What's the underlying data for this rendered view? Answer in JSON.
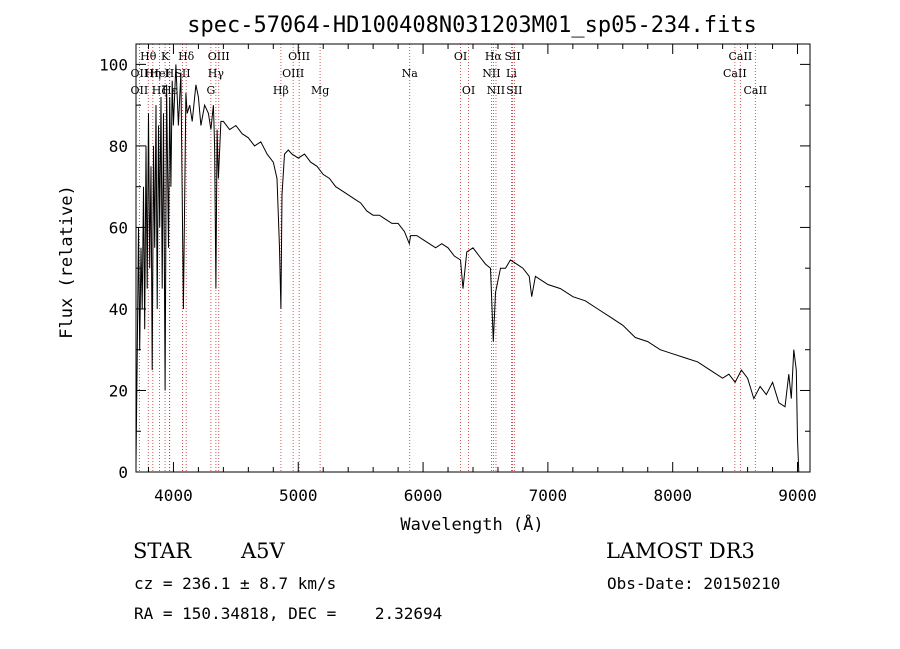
{
  "chart_data": {
    "type": "line",
    "title": "spec-57064-HD100408N031203M01_sp05-234.fits",
    "xlabel": "Wavelength (Å)",
    "ylabel": "Flux (relative)",
    "xlim": [
      3700,
      9100
    ],
    "ylim": [
      0,
      105
    ],
    "xticks": [
      4000,
      5000,
      6000,
      7000,
      8000,
      9000
    ],
    "yticks": [
      0,
      20,
      40,
      60,
      80,
      100
    ],
    "grid": false,
    "line_color": "#000000",
    "marker_color": "#c03030",
    "series": [
      {
        "x": [
          3700,
          3710,
          3720,
          3730,
          3740,
          3750,
          3760,
          3770,
          3780,
          3790,
          3800,
          3810,
          3820,
          3830,
          3840,
          3850,
          3860,
          3870,
          3880,
          3890,
          3900,
          3910,
          3920,
          3933,
          3945,
          3960,
          3970,
          3980,
          3990,
          4000,
          4020,
          4040,
          4060,
          4080,
          4100,
          4110,
          4130,
          4150,
          4180,
          4200,
          4220,
          4250,
          4280,
          4300,
          4320,
          4330,
          4340,
          4350,
          4360,
          4380,
          4400,
          4450,
          4500,
          4550,
          4600,
          4650,
          4700,
          4750,
          4800,
          4830,
          4850,
          4861,
          4870,
          4890,
          4920,
          4950,
          5000,
          5050,
          5100,
          5150,
          5200,
          5250,
          5300,
          5350,
          5400,
          5450,
          5500,
          5550,
          5600,
          5650,
          5700,
          5750,
          5800,
          5850,
          5890,
          5900,
          5950,
          6000,
          6050,
          6100,
          6150,
          6200,
          6250,
          6300,
          6320,
          6350,
          6400,
          6450,
          6500,
          6540,
          6563,
          6580,
          6620,
          6660,
          6700,
          6750,
          6800,
          6850,
          6870,
          6900,
          6950,
          7000,
          7100,
          7200,
          7300,
          7400,
          7500,
          7600,
          7700,
          7800,
          7900,
          8000,
          8100,
          8200,
          8300,
          8400,
          8450,
          8500,
          8550,
          8600,
          8650,
          8700,
          8750,
          8800,
          8850,
          8900,
          8930,
          8950,
          8970,
          8990,
          9000,
          9010
        ],
        "y": [
          2,
          28,
          60,
          30,
          55,
          40,
          70,
          35,
          80,
          45,
          88,
          50,
          75,
          25,
          80,
          55,
          90,
          40,
          85,
          60,
          92,
          45,
          88,
          20,
          95,
          55,
          92,
          70,
          96,
          85,
          100,
          85,
          98,
          40,
          93,
          88,
          90,
          86,
          95,
          92,
          85,
          90,
          88,
          84,
          90,
          80,
          45,
          84,
          72,
          86,
          86,
          84,
          85,
          83,
          82,
          80,
          81,
          78,
          76,
          72,
          55,
          40,
          68,
          78,
          79,
          78,
          77,
          78,
          76,
          75,
          73,
          72,
          70,
          69,
          68,
          67,
          66,
          64,
          63,
          63,
          62,
          61,
          61,
          59,
          56,
          58,
          58,
          57,
          56,
          55,
          56,
          55,
          53,
          52,
          45,
          54,
          55,
          53,
          51,
          50,
          32,
          44,
          50,
          50,
          52,
          51,
          50,
          48,
          43,
          48,
          47,
          46,
          45,
          43,
          42,
          40,
          38,
          36,
          33,
          32,
          30,
          29,
          28,
          27,
          25,
          23,
          24,
          22,
          25,
          23,
          18,
          21,
          19,
          22,
          17,
          16,
          24,
          18,
          30,
          25,
          8,
          0
        ]
      }
    ],
    "lines": [
      {
        "label": "OII",
        "x": 3727,
        "row": 1
      },
      {
        "label": "OII",
        "x": 3727,
        "row": 2
      },
      {
        "label": "Hθ",
        "x": 3798,
        "row": 0
      },
      {
        "label": "Hη",
        "x": 3835,
        "row": 1
      },
      {
        "label": "Hζ",
        "x": 3889,
        "row": 2
      },
      {
        "label": "K",
        "x": 3933,
        "row": 0
      },
      {
        "label": "HeI",
        "x": 3889,
        "row": 1
      },
      {
        "label": "H",
        "x": 3968,
        "row": 1
      },
      {
        "label": "Hε",
        "x": 3970,
        "row": 2
      },
      {
        "label": "Hδ",
        "x": 4102,
        "row": 0
      },
      {
        "label": "SII",
        "x": 4072,
        "row": 1
      },
      {
        "label": "OIII",
        "x": 4363,
        "row": 0
      },
      {
        "label": "Hγ",
        "x": 4340,
        "row": 1
      },
      {
        "label": "G",
        "x": 4300,
        "row": 2
      },
      {
        "label": "OIII",
        "x": 5007,
        "row": 0
      },
      {
        "label": "OIII",
        "x": 4959,
        "row": 1
      },
      {
        "label": "Hβ",
        "x": 4861,
        "row": 2
      },
      {
        "label": "Mg",
        "x": 5175,
        "row": 2
      },
      {
        "label": "Na",
        "x": 5893,
        "row": 1
      },
      {
        "label": "OI",
        "x": 6300,
        "row": 0
      },
      {
        "label": "OI",
        "x": 6364,
        "row": 2
      },
      {
        "label": "Hα",
        "x": 6563,
        "row": 0
      },
      {
        "label": "NII",
        "x": 6548,
        "row": 1
      },
      {
        "label": "NII",
        "x": 6584,
        "row": 2
      },
      {
        "label": "SII",
        "x": 6717,
        "row": 0
      },
      {
        "label": "Li",
        "x": 6708,
        "row": 1
      },
      {
        "label": "SII",
        "x": 6731,
        "row": 2
      },
      {
        "label": "CaII",
        "x": 8542,
        "row": 0
      },
      {
        "label": "CaII",
        "x": 8498,
        "row": 1
      },
      {
        "label": "CaII",
        "x": 8662,
        "row": 2
      }
    ]
  },
  "info": {
    "object_type": "STAR",
    "spectral_class": "A5V",
    "survey": "LAMOST DR3",
    "redshift_line": "cz = 236.1 ± 8.7 km/s",
    "obs_date": "Obs-Date: 20150210",
    "coords": "RA = 150.34818, DEC =    2.32694"
  }
}
